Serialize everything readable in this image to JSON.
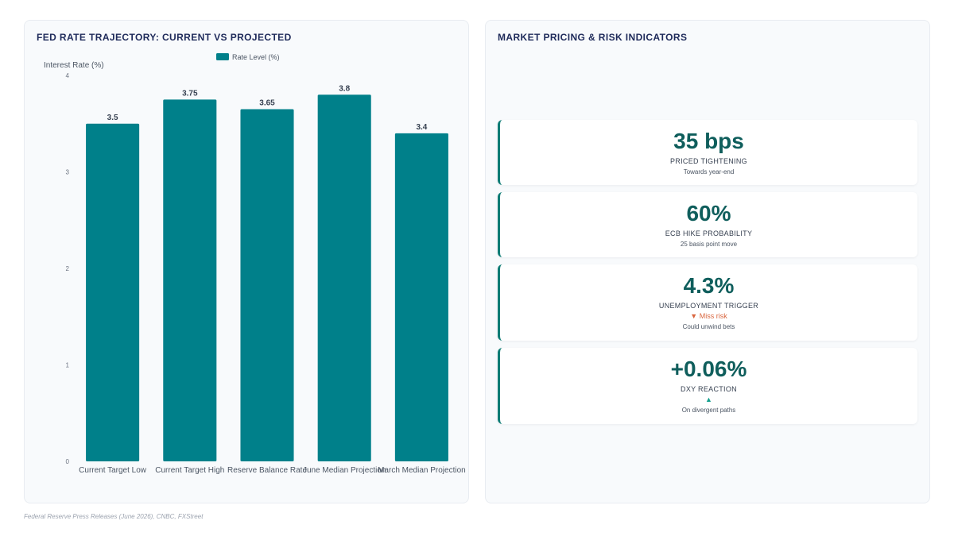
{
  "left_panel": {
    "title": "FED RATE TRAJECTORY: CURRENT VS PROJECTED"
  },
  "right_panel": {
    "title": "MARKET PRICING & RISK INDICATORS"
  },
  "chart_data": {
    "type": "bar",
    "categories": [
      "Current Target Low",
      "Current Target High",
      "Reserve Balance Rate",
      "June Median Projection",
      "March Median Projection"
    ],
    "series": [
      {
        "name": "Rate Level (%)",
        "values": [
          3.5,
          3.75,
          3.65,
          3.8,
          3.4
        ]
      }
    ],
    "xlabel": "",
    "ylabel": "Interest Rate (%)",
    "ylim": [
      0,
      4
    ],
    "yticks": [
      0,
      1,
      2,
      3,
      4
    ],
    "grid": false,
    "legend": "top",
    "bar_color": "#00808a",
    "data_labels": true
  },
  "indicators": [
    {
      "value": "35 bps",
      "label": "PRICED TIGHTENING",
      "delta": "",
      "delta_dir": "",
      "sub": "Towards year-end"
    },
    {
      "value": "60%",
      "label": "ECB HIKE PROBABILITY",
      "delta": "",
      "delta_dir": "",
      "sub": "25 basis point move"
    },
    {
      "value": "4.3%",
      "label": "UNEMPLOYMENT TRIGGER",
      "delta": "▼ Miss risk",
      "delta_dir": "down",
      "sub": "Could unwind bets"
    },
    {
      "value": "+0.06%",
      "label": "DXY REACTION",
      "delta": "▲",
      "delta_dir": "up",
      "sub": "On divergent paths"
    }
  ],
  "colors": {
    "accent": "#0e7c75",
    "bar": "#00808a",
    "title": "#1e2a5a",
    "negative": "#d9663f",
    "positive": "#14a08e"
  },
  "source": "Federal Reserve Press Releases (June 2026), CNBC, FXStreet"
}
